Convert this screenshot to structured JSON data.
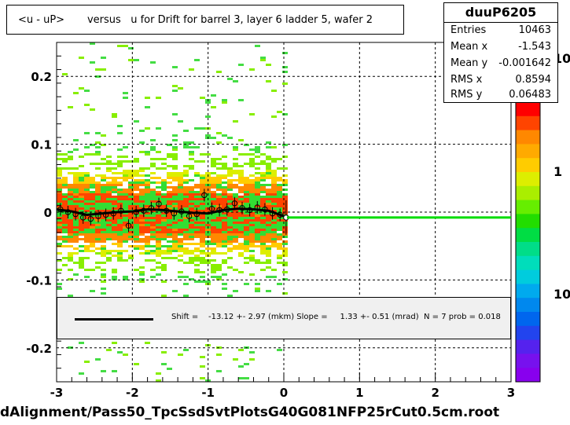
{
  "title": "<u - uP>       versus   u for Drift for barrel 3, layer 6 ladder 5, wafer 2",
  "footer": "dAlignment/Pass50_TpcSsdSvtPlotsG40G081NFP25rCut0.5cm.root",
  "stats": {
    "name": "duuP6205",
    "rows": [
      {
        "label": "Entries",
        "value": "10463"
      },
      {
        "label": "Mean x",
        "value": "-1.543"
      },
      {
        "label": "Mean y",
        "value": "-0.001642"
      },
      {
        "label": "RMS x",
        "value": "0.8594"
      },
      {
        "label": "RMS y",
        "value": "0.06483"
      }
    ]
  },
  "fit_text": "Shift =    -13.12 +- 2.97 (mkm) Slope =     1.33 +- 0.51 (mrad)  N = 7 prob = 0.018",
  "colors": {
    "fit_line": "#000000",
    "green_line": "#00dd00"
  },
  "chart_data": {
    "type": "heatmap",
    "xlim": [
      -3,
      3
    ],
    "ylim": [
      -0.25,
      0.25
    ],
    "x_ticks": [
      "-3",
      "-2",
      "-1",
      "0",
      "1",
      "2",
      "3"
    ],
    "y_ticks": [
      "-0.2",
      "-0.1",
      "0",
      "0.1",
      "0.2"
    ],
    "colorbar_ticks": [
      "10",
      "1",
      "10"
    ],
    "profile": {
      "x": [
        -2.95,
        -2.85,
        -2.75,
        -2.65,
        -2.55,
        -2.45,
        -2.35,
        -2.25,
        -2.15,
        -2.05,
        -1.95,
        -1.85,
        -1.75,
        -1.65,
        -1.55,
        -1.45,
        -1.35,
        -1.25,
        -1.15,
        -1.05,
        -0.95,
        -0.85,
        -0.75,
        -0.65,
        -0.55,
        -0.45,
        -0.35,
        -0.25,
        -0.15,
        -0.05
      ],
      "y": [
        0.004,
        0.0,
        -0.003,
        -0.008,
        -0.01,
        -0.006,
        -0.004,
        -0.002,
        0.002,
        -0.02,
        0.0,
        0.002,
        0.006,
        0.012,
        0.002,
        -0.002,
        0.001,
        -0.006,
        -0.003,
        0.025,
        0.005,
        0.003,
        0.004,
        0.013,
        0.006,
        0.003,
        0.007,
        0.004,
        -0.002,
        -0.004
      ]
    },
    "fit_curve": {
      "x": [
        -3.0,
        -2.8,
        -2.6,
        -2.4,
        -2.2,
        -2.0,
        -1.8,
        -1.6,
        -1.4,
        -1.2,
        -1.0,
        -0.8,
        -0.6,
        -0.4,
        -0.2,
        0.0
      ],
      "y": [
        0.004,
        0.001,
        -0.004,
        -0.002,
        0.0,
        0.001,
        0.004,
        0.003,
        0.001,
        -0.001,
        -0.002,
        0.003,
        0.005,
        0.004,
        0.002,
        -0.006
      ]
    },
    "green_line_y": -0.008
  }
}
